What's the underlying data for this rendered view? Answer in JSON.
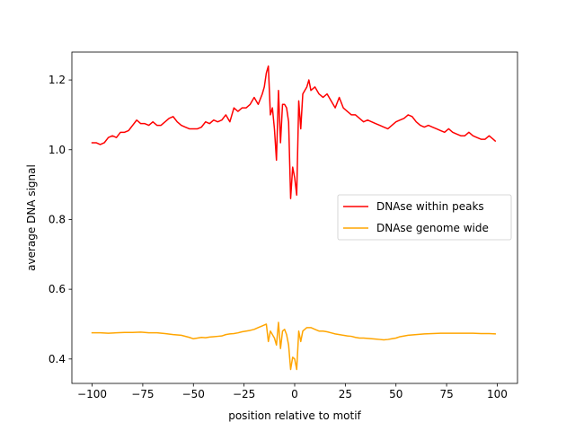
{
  "chart_data": {
    "type": "line",
    "title": "",
    "xlabel": "position relative to motif",
    "ylabel": "average DNA signal",
    "xlim": [
      -110,
      110
    ],
    "ylim": [
      0.33,
      1.28
    ],
    "xticks": [
      -100,
      -75,
      -50,
      -25,
      0,
      25,
      50,
      75,
      100
    ],
    "yticks": [
      0.4,
      0.6,
      0.8,
      1.0,
      1.2
    ],
    "grid": false,
    "legend_position": "center-right",
    "series": [
      {
        "name": "DNAse within peaks",
        "color": "#ff0000",
        "points": [
          [
            -100,
            1.02
          ],
          [
            -98,
            1.02
          ],
          [
            -96,
            1.015
          ],
          [
            -94,
            1.02
          ],
          [
            -92,
            1.035
          ],
          [
            -90,
            1.04
          ],
          [
            -88,
            1.035
          ],
          [
            -86,
            1.05
          ],
          [
            -84,
            1.05
          ],
          [
            -82,
            1.055
          ],
          [
            -80,
            1.07
          ],
          [
            -78,
            1.085
          ],
          [
            -76,
            1.075
          ],
          [
            -74,
            1.075
          ],
          [
            -72,
            1.07
          ],
          [
            -70,
            1.08
          ],
          [
            -68,
            1.07
          ],
          [
            -66,
            1.07
          ],
          [
            -64,
            1.08
          ],
          [
            -62,
            1.09
          ],
          [
            -60,
            1.095
          ],
          [
            -58,
            1.08
          ],
          [
            -56,
            1.07
          ],
          [
            -54,
            1.065
          ],
          [
            -52,
            1.06
          ],
          [
            -50,
            1.06
          ],
          [
            -48,
            1.06
          ],
          [
            -46,
            1.065
          ],
          [
            -44,
            1.08
          ],
          [
            -42,
            1.075
          ],
          [
            -40,
            1.085
          ],
          [
            -38,
            1.08
          ],
          [
            -36,
            1.085
          ],
          [
            -34,
            1.1
          ],
          [
            -32,
            1.08
          ],
          [
            -30,
            1.12
          ],
          [
            -28,
            1.11
          ],
          [
            -26,
            1.12
          ],
          [
            -24,
            1.12
          ],
          [
            -22,
            1.13
          ],
          [
            -20,
            1.15
          ],
          [
            -18,
            1.13
          ],
          [
            -16,
            1.16
          ],
          [
            -15,
            1.18
          ],
          [
            -14,
            1.22
          ],
          [
            -13,
            1.24
          ],
          [
            -12,
            1.1
          ],
          [
            -11,
            1.12
          ],
          [
            -10,
            1.06
          ],
          [
            -9,
            0.97
          ],
          [
            -8,
            1.17
          ],
          [
            -7,
            1.02
          ],
          [
            -6,
            1.13
          ],
          [
            -5,
            1.13
          ],
          [
            -4,
            1.12
          ],
          [
            -3,
            1.08
          ],
          [
            -2,
            0.86
          ],
          [
            -1,
            0.95
          ],
          [
            0,
            0.92
          ],
          [
            1,
            0.87
          ],
          [
            2,
            1.14
          ],
          [
            3,
            1.06
          ],
          [
            4,
            1.16
          ],
          [
            5,
            1.17
          ],
          [
            6,
            1.18
          ],
          [
            7,
            1.2
          ],
          [
            8,
            1.17
          ],
          [
            10,
            1.18
          ],
          [
            12,
            1.16
          ],
          [
            14,
            1.15
          ],
          [
            16,
            1.16
          ],
          [
            18,
            1.14
          ],
          [
            20,
            1.12
          ],
          [
            22,
            1.15
          ],
          [
            24,
            1.12
          ],
          [
            26,
            1.11
          ],
          [
            28,
            1.1
          ],
          [
            30,
            1.1
          ],
          [
            32,
            1.09
          ],
          [
            34,
            1.08
          ],
          [
            36,
            1.085
          ],
          [
            38,
            1.08
          ],
          [
            40,
            1.075
          ],
          [
            42,
            1.07
          ],
          [
            44,
            1.065
          ],
          [
            46,
            1.06
          ],
          [
            48,
            1.07
          ],
          [
            50,
            1.08
          ],
          [
            52,
            1.085
          ],
          [
            54,
            1.09
          ],
          [
            56,
            1.1
          ],
          [
            58,
            1.095
          ],
          [
            60,
            1.08
          ],
          [
            62,
            1.07
          ],
          [
            64,
            1.065
          ],
          [
            66,
            1.07
          ],
          [
            68,
            1.065
          ],
          [
            70,
            1.06
          ],
          [
            72,
            1.055
          ],
          [
            74,
            1.05
          ],
          [
            76,
            1.06
          ],
          [
            78,
            1.05
          ],
          [
            80,
            1.045
          ],
          [
            82,
            1.04
          ],
          [
            84,
            1.04
          ],
          [
            86,
            1.05
          ],
          [
            88,
            1.04
          ],
          [
            90,
            1.035
          ],
          [
            92,
            1.03
          ],
          [
            94,
            1.03
          ],
          [
            96,
            1.04
          ],
          [
            98,
            1.03
          ],
          [
            99,
            1.025
          ]
        ]
      },
      {
        "name": "DNAse genome wide",
        "color": "#ffa500",
        "points": [
          [
            -100,
            0.475
          ],
          [
            -96,
            0.475
          ],
          [
            -92,
            0.474
          ],
          [
            -88,
            0.475
          ],
          [
            -84,
            0.476
          ],
          [
            -80,
            0.476
          ],
          [
            -76,
            0.477
          ],
          [
            -72,
            0.475
          ],
          [
            -68,
            0.475
          ],
          [
            -64,
            0.473
          ],
          [
            -60,
            0.47
          ],
          [
            -56,
            0.468
          ],
          [
            -52,
            0.462
          ],
          [
            -50,
            0.458
          ],
          [
            -48,
            0.46
          ],
          [
            -46,
            0.462
          ],
          [
            -44,
            0.461
          ],
          [
            -42,
            0.463
          ],
          [
            -40,
            0.464
          ],
          [
            -38,
            0.465
          ],
          [
            -36,
            0.466
          ],
          [
            -34,
            0.47
          ],
          [
            -32,
            0.472
          ],
          [
            -30,
            0.473
          ],
          [
            -28,
            0.475
          ],
          [
            -26,
            0.478
          ],
          [
            -24,
            0.48
          ],
          [
            -22,
            0.482
          ],
          [
            -20,
            0.485
          ],
          [
            -18,
            0.49
          ],
          [
            -16,
            0.495
          ],
          [
            -14,
            0.5
          ],
          [
            -13,
            0.45
          ],
          [
            -12,
            0.48
          ],
          [
            -10,
            0.46
          ],
          [
            -9,
            0.44
          ],
          [
            -8,
            0.505
          ],
          [
            -7,
            0.43
          ],
          [
            -6,
            0.48
          ],
          [
            -5,
            0.485
          ],
          [
            -4,
            0.47
          ],
          [
            -3,
            0.44
          ],
          [
            -2,
            0.37
          ],
          [
            -1,
            0.405
          ],
          [
            0,
            0.4
          ],
          [
            1,
            0.37
          ],
          [
            2,
            0.48
          ],
          [
            3,
            0.45
          ],
          [
            4,
            0.48
          ],
          [
            6,
            0.49
          ],
          [
            8,
            0.49
          ],
          [
            10,
            0.485
          ],
          [
            12,
            0.48
          ],
          [
            14,
            0.48
          ],
          [
            16,
            0.478
          ],
          [
            18,
            0.475
          ],
          [
            20,
            0.472
          ],
          [
            22,
            0.47
          ],
          [
            24,
            0.468
          ],
          [
            26,
            0.466
          ],
          [
            28,
            0.465
          ],
          [
            30,
            0.462
          ],
          [
            32,
            0.46
          ],
          [
            34,
            0.46
          ],
          [
            36,
            0.459
          ],
          [
            38,
            0.458
          ],
          [
            40,
            0.457
          ],
          [
            42,
            0.456
          ],
          [
            44,
            0.455
          ],
          [
            46,
            0.456
          ],
          [
            48,
            0.458
          ],
          [
            50,
            0.46
          ],
          [
            52,
            0.464
          ],
          [
            56,
            0.468
          ],
          [
            60,
            0.47
          ],
          [
            64,
            0.472
          ],
          [
            68,
            0.473
          ],
          [
            72,
            0.474
          ],
          [
            76,
            0.474
          ],
          [
            80,
            0.474
          ],
          [
            84,
            0.474
          ],
          [
            88,
            0.474
          ],
          [
            92,
            0.473
          ],
          [
            96,
            0.473
          ],
          [
            99,
            0.472
          ]
        ]
      }
    ]
  }
}
